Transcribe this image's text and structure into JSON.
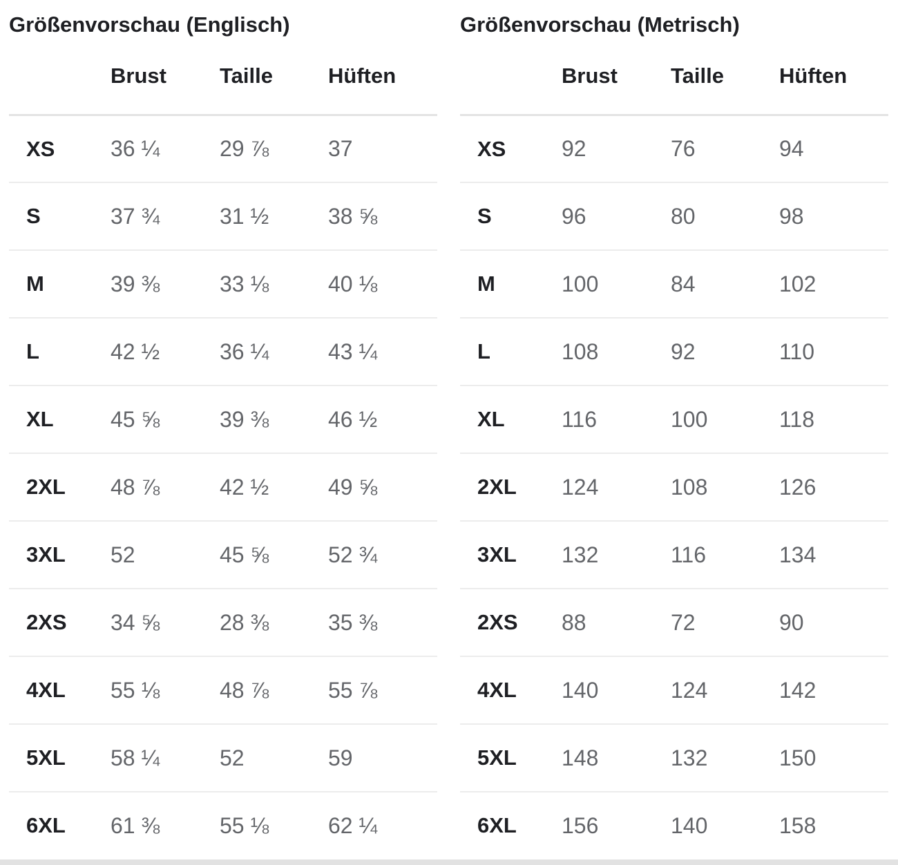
{
  "colors": {
    "heading_text": "#1e1f23",
    "value_text": "#636569",
    "divider": "#e8e8e8"
  },
  "tables": [
    {
      "title": "Größenvorschau (Englisch)",
      "columns": [
        "Brust",
        "Taille",
        "Hüften"
      ],
      "rows": [
        {
          "size": "XS",
          "values": [
            "36 ¼",
            "29 ⅞",
            "37"
          ]
        },
        {
          "size": "S",
          "values": [
            "37 ¾",
            "31 ½",
            "38 ⅝"
          ]
        },
        {
          "size": "M",
          "values": [
            "39 ⅜",
            "33 ⅛",
            "40 ⅛"
          ]
        },
        {
          "size": "L",
          "values": [
            "42 ½",
            "36 ¼",
            "43 ¼"
          ]
        },
        {
          "size": "XL",
          "values": [
            "45 ⅝",
            "39 ⅜",
            "46 ½"
          ]
        },
        {
          "size": "2XL",
          "values": [
            "48 ⅞",
            "42 ½",
            "49 ⅝"
          ]
        },
        {
          "size": "3XL",
          "values": [
            "52",
            "45 ⅝",
            "52 ¾"
          ]
        },
        {
          "size": "2XS",
          "values": [
            "34 ⅝",
            "28 ⅜",
            "35 ⅜"
          ]
        },
        {
          "size": "4XL",
          "values": [
            "55 ⅛",
            "48 ⅞",
            "55 ⅞"
          ]
        },
        {
          "size": "5XL",
          "values": [
            "58 ¼",
            "52",
            "59"
          ]
        },
        {
          "size": "6XL",
          "values": [
            "61 ⅜",
            "55 ⅛",
            "62 ¼"
          ]
        }
      ]
    },
    {
      "title": "Größenvorschau (Metrisch)",
      "columns": [
        "Brust",
        "Taille",
        "Hüften"
      ],
      "rows": [
        {
          "size": "XS",
          "values": [
            "92",
            "76",
            "94"
          ]
        },
        {
          "size": "S",
          "values": [
            "96",
            "80",
            "98"
          ]
        },
        {
          "size": "M",
          "values": [
            "100",
            "84",
            "102"
          ]
        },
        {
          "size": "L",
          "values": [
            "108",
            "92",
            "110"
          ]
        },
        {
          "size": "XL",
          "values": [
            "116",
            "100",
            "118"
          ]
        },
        {
          "size": "2XL",
          "values": [
            "124",
            "108",
            "126"
          ]
        },
        {
          "size": "3XL",
          "values": [
            "132",
            "116",
            "134"
          ]
        },
        {
          "size": "2XS",
          "values": [
            "88",
            "72",
            "90"
          ]
        },
        {
          "size": "4XL",
          "values": [
            "140",
            "124",
            "142"
          ]
        },
        {
          "size": "5XL",
          "values": [
            "148",
            "132",
            "150"
          ]
        },
        {
          "size": "6XL",
          "values": [
            "156",
            "140",
            "158"
          ]
        }
      ]
    }
  ]
}
